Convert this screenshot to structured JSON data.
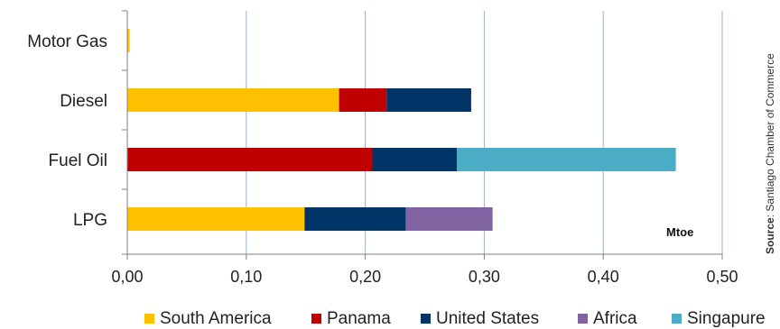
{
  "chart_data": {
    "type": "bar",
    "orientation": "horizontal",
    "stacked": true,
    "categories": [
      "Motor Gas",
      "Diesel",
      "Fuel Oil",
      "LPG"
    ],
    "series": [
      {
        "name": "South America",
        "color": "#ffc000",
        "values": [
          0.002,
          0.178,
          0,
          0.149
        ]
      },
      {
        "name": "Panama",
        "color": "#c00000",
        "values": [
          0,
          0.04,
          0.206,
          0
        ]
      },
      {
        "name": "United States",
        "color": "#003366",
        "values": [
          0,
          0.071,
          0.071,
          0.085
        ]
      },
      {
        "name": "Africa",
        "color": "#8064a2",
        "values": [
          0,
          0,
          0,
          0.073
        ]
      },
      {
        "name": "Singapure",
        "color": "#4bacc6",
        "values": [
          0,
          0,
          0.184,
          0
        ]
      }
    ],
    "x_ticks": [
      "0,00",
      "0,10",
      "0,20",
      "0,30",
      "0,40",
      "0,50"
    ],
    "xlim": [
      0,
      0.5
    ],
    "unit_label": "Mtoe",
    "grid": "vertical",
    "legend": "bottom",
    "source_prefix": "Source",
    "source_text": ": Santiago Chamber of Commerce"
  }
}
